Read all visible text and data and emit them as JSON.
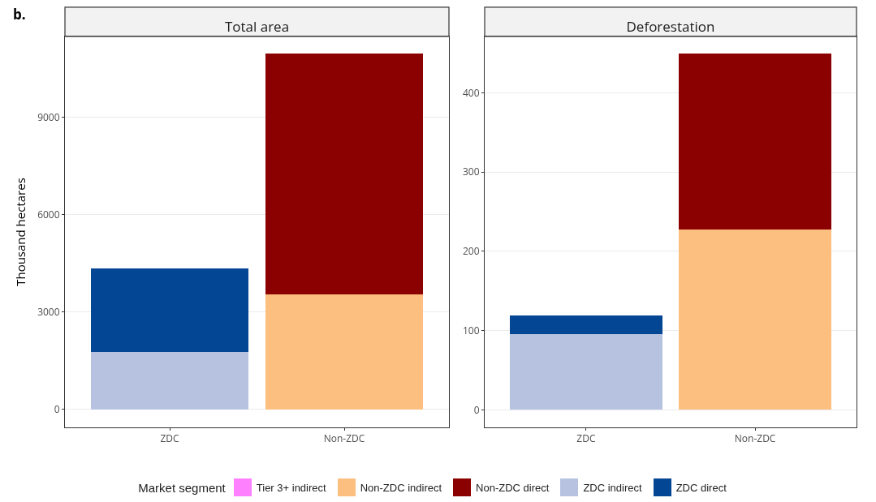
{
  "chart_data": [
    {
      "type": "bar",
      "title": "Total area",
      "ylabel": "Thousand hectares",
      "legend_title": "Market segment",
      "annotations": [
        "b."
      ],
      "categories": [
        "ZDC",
        "Non-ZDC"
      ],
      "stacked": true,
      "grid": true,
      "legend": "bottom",
      "ylim": [
        -550,
        11480
      ],
      "yticks": [
        0,
        3000,
        6000,
        9000
      ],
      "series": [
        {
          "name": "Tier 3+ indirect",
          "color": "#ff80ff",
          "values": [
            0,
            0
          ]
        },
        {
          "name": "Non-ZDC indirect",
          "color": "#fdbf7f",
          "values": [
            0,
            3550
          ]
        },
        {
          "name": "Non-ZDC direct",
          "color": "#8b0000",
          "values": [
            0,
            7410
          ]
        },
        {
          "name": "ZDC indirect",
          "color": "#b7c2e0",
          "values": [
            1760,
            0
          ]
        },
        {
          "name": "ZDC direct",
          "color": "#034694",
          "values": [
            2580,
            0
          ]
        }
      ]
    },
    {
      "type": "bar",
      "title": "Deforestation",
      "categories": [
        "ZDC",
        "Non-ZDC"
      ],
      "stacked": true,
      "grid": true,
      "legend": false,
      "ylim": [
        -22,
        471
      ],
      "yticks": [
        0,
        100,
        200,
        300,
        400
      ],
      "series": [
        {
          "color": "#ff80ff",
          "values": [
            0,
            0
          ]
        },
        {
          "color": "#fdbf7f",
          "values": [
            0,
            228
          ]
        },
        {
          "color": "#8b0000",
          "values": [
            0,
            222
          ]
        },
        {
          "color": "#b7c2e0",
          "values": [
            96,
            0
          ]
        },
        {
          "color": "#034694",
          "values": [
            23,
            0
          ]
        }
      ]
    }
  ]
}
